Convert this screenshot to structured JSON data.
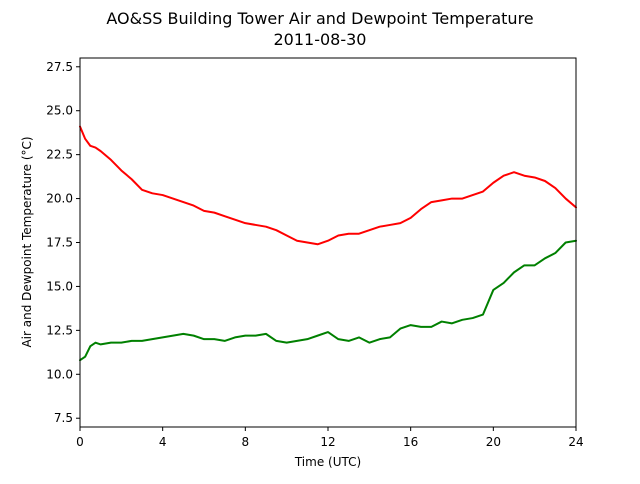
{
  "chart_data": {
    "type": "line",
    "title": "AO&SS Building Tower Air and Dewpoint Temperature",
    "subtitle": "2011-08-30",
    "xlabel": "Time (UTC)",
    "ylabel": "Air and Dewpoint Temperature (°C)",
    "xlim": [
      0,
      24
    ],
    "ylim": [
      7,
      28
    ],
    "xticks": [
      0,
      4,
      8,
      12,
      16,
      20,
      24
    ],
    "xtick_labels": [
      "0",
      "4",
      "8",
      "12",
      "16",
      "20",
      "24"
    ],
    "yticks": [
      7.5,
      10.0,
      12.5,
      15.0,
      17.5,
      20.0,
      22.5,
      25.0,
      27.5
    ],
    "ytick_labels": [
      "7.5",
      "10.0",
      "12.5",
      "15.0",
      "17.5",
      "20.0",
      "22.5",
      "25.0",
      "27.5"
    ],
    "grid": false,
    "legend": "none",
    "series": [
      {
        "color": "#ff0000",
        "x": [
          0,
          0.25,
          0.5,
          0.75,
          1,
          1.5,
          2,
          2.5,
          3,
          3.5,
          4,
          4.5,
          5,
          5.5,
          6,
          6.5,
          7,
          7.5,
          8,
          8.5,
          9,
          9.5,
          10,
          10.5,
          11,
          11.5,
          12,
          12.5,
          13,
          13.5,
          14,
          14.5,
          15,
          15.5,
          16,
          16.5,
          17,
          17.5,
          18,
          18.5,
          19,
          19.5,
          20,
          20.5,
          21,
          21.5,
          22,
          22.5,
          23,
          23.5,
          24
        ],
        "y": [
          24.1,
          23.4,
          23.0,
          22.9,
          22.7,
          22.2,
          21.6,
          21.1,
          20.5,
          20.3,
          20.2,
          20.0,
          19.8,
          19.6,
          19.3,
          19.2,
          19.0,
          18.8,
          18.6,
          18.5,
          18.4,
          18.2,
          17.9,
          17.6,
          17.5,
          17.4,
          17.6,
          17.9,
          18.0,
          18.0,
          18.2,
          18.4,
          18.5,
          18.6,
          18.9,
          19.4,
          19.8,
          19.9,
          20.0,
          20.0,
          20.2,
          20.4,
          20.9,
          21.3,
          21.5,
          21.3,
          21.2,
          21.0,
          20.6,
          20.0,
          19.5
        ]
      },
      {
        "color": "#008000",
        "x": [
          0,
          0.25,
          0.5,
          0.75,
          1,
          1.5,
          2,
          2.5,
          3,
          3.5,
          4,
          4.5,
          5,
          5.5,
          6,
          6.5,
          7,
          7.5,
          8,
          8.5,
          9,
          9.5,
          10,
          10.5,
          11,
          11.5,
          12,
          12.5,
          13,
          13.5,
          14,
          14.5,
          15,
          15.5,
          16,
          16.5,
          17,
          17.5,
          18,
          18.5,
          19,
          19.5,
          20,
          20.5,
          21,
          21.5,
          22,
          22.5,
          23,
          23.5,
          24
        ],
        "y": [
          10.8,
          11.0,
          11.6,
          11.8,
          11.7,
          11.8,
          11.8,
          11.9,
          11.9,
          12.0,
          12.1,
          12.2,
          12.3,
          12.2,
          12.0,
          12.0,
          11.9,
          12.1,
          12.2,
          12.2,
          12.3,
          11.9,
          11.8,
          11.9,
          12.0,
          12.2,
          12.4,
          12.0,
          11.9,
          12.1,
          11.8,
          12.0,
          12.1,
          12.6,
          12.8,
          12.7,
          12.7,
          13.0,
          12.9,
          13.1,
          13.2,
          13.4,
          14.8,
          15.2,
          15.8,
          16.2,
          16.2,
          16.6,
          16.9,
          17.5,
          17.6
        ]
      }
    ]
  }
}
